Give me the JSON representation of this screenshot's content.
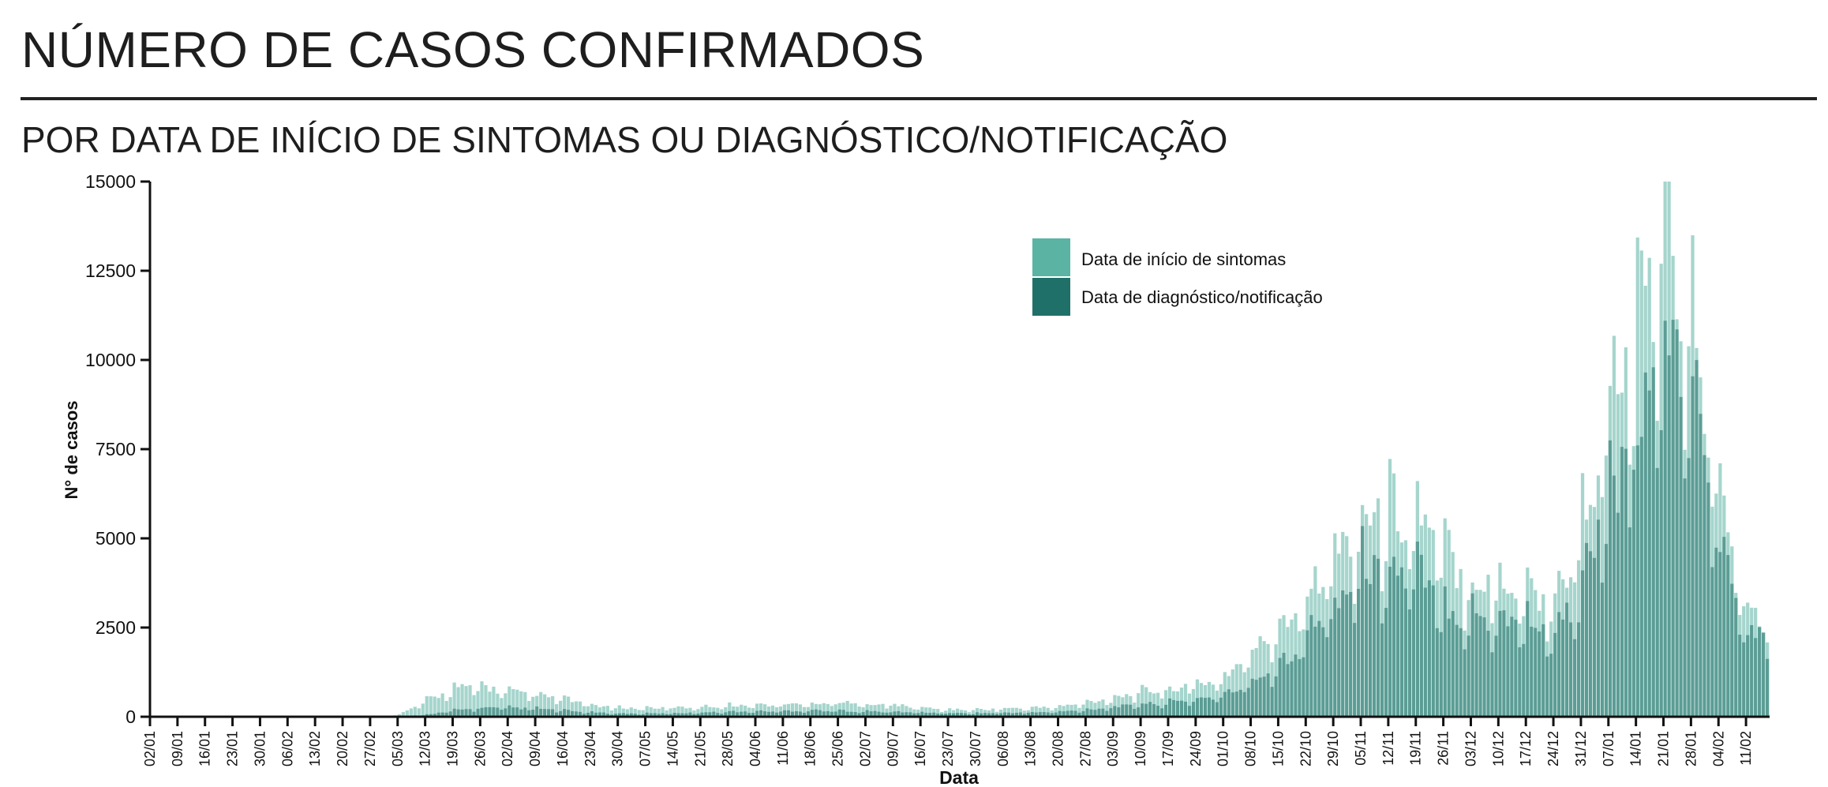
{
  "header": {
    "title": "NÚMERO DE CASOS CONFIRMADOS",
    "subtitle": "POR DATA DE INÍCIO DE SINTOMAS OU DIAGNÓSTICO/NOTIFICAÇÃO"
  },
  "colors": {
    "symptoms": "#5bb3a4",
    "diagnosis": "#1f7068"
  },
  "chart_data": {
    "type": "bar",
    "xlabel": "Data",
    "ylabel": "N° de casos",
    "ylim": [
      0,
      15000
    ],
    "y_ticks": [
      0,
      2500,
      5000,
      7500,
      10000,
      12500,
      15000
    ],
    "x_tick_labels": [
      "02/01",
      "09/01",
      "16/01",
      "23/01",
      "30/01",
      "06/02",
      "13/02",
      "20/02",
      "27/02",
      "05/03",
      "12/03",
      "19/03",
      "26/03",
      "02/04",
      "09/04",
      "16/04",
      "23/04",
      "30/04",
      "07/05",
      "14/05",
      "21/05",
      "28/05",
      "04/06",
      "11/06",
      "18/06",
      "25/06",
      "02/07",
      "09/07",
      "16/07",
      "23/07",
      "30/07",
      "06/08",
      "13/08",
      "20/08",
      "27/08",
      "03/09",
      "10/09",
      "17/09",
      "24/09",
      "01/10",
      "08/10",
      "15/10",
      "22/10",
      "29/10",
      "05/11",
      "12/11",
      "19/11",
      "26/11",
      "03/12",
      "10/12",
      "17/12",
      "24/12",
      "31/12",
      "07/01",
      "14/01",
      "21/01",
      "28/01",
      "04/02",
      "11/02"
    ],
    "legend_position": "top-right",
    "grid": false,
    "series": [
      {
        "name": "Data de início de sintomas",
        "color": "#5bb3a4",
        "weekly_values": [
          0,
          0,
          0,
          0,
          0,
          0,
          0,
          0,
          0,
          60,
          450,
          800,
          850,
          700,
          600,
          500,
          320,
          250,
          250,
          250,
          280,
          320,
          330,
          340,
          380,
          400,
          360,
          330,
          250,
          200,
          200,
          230,
          250,
          280,
          400,
          550,
          700,
          780,
          900,
          1100,
          1800,
          2600,
          3500,
          4500,
          5500,
          5800,
          5600,
          4600,
          3800,
          3800,
          3600,
          3200,
          5500,
          8800,
          10500,
          13500,
          11000,
          6200,
          2800
        ]
      },
      {
        "name": "Data de diagnóstico/notificação",
        "color": "#1f7068",
        "weekly_values": [
          0,
          0,
          0,
          0,
          0,
          0,
          0,
          0,
          0,
          5,
          60,
          180,
          250,
          250,
          230,
          170,
          120,
          90,
          90,
          100,
          120,
          140,
          150,
          160,
          180,
          170,
          150,
          140,
          120,
          100,
          100,
          110,
          120,
          140,
          200,
          280,
          350,
          400,
          500,
          600,
          1000,
          1500,
          2300,
          3200,
          4200,
          4100,
          4000,
          3100,
          2800,
          2800,
          2700,
          2300,
          3800,
          6200,
          7500,
          10800,
          9200,
          4800,
          2300
        ]
      }
    ]
  }
}
